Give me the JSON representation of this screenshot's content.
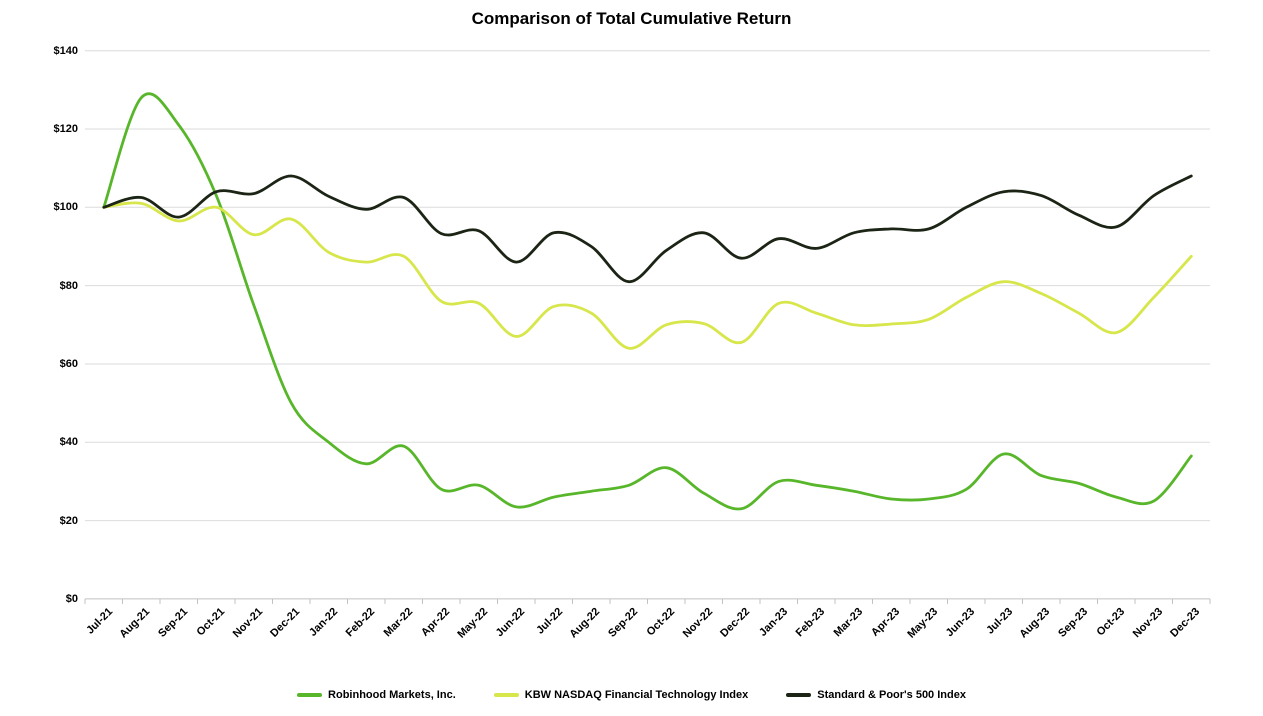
{
  "title": "Comparison of Total Cumulative Return",
  "chart_data": {
    "type": "line",
    "title": "Comparison of Total Cumulative Return",
    "smoothed": true,
    "grid": true,
    "legend_position": "bottom",
    "background_color": "#ffffff",
    "gridline_color": "#dbdbdb",
    "axis_color": "#c0c0c0",
    "categories": [
      "Jul-21",
      "Aug-21",
      "Sep-21",
      "Oct-21",
      "Nov-21",
      "Dec-21",
      "Jan-22",
      "Feb-22",
      "Mar-22",
      "Apr-22",
      "May-22",
      "Jun-22",
      "Jul-22",
      "Aug-22",
      "Sep-22",
      "Oct-22",
      "Nov-22",
      "Dec-22",
      "Jan-23",
      "Feb-23",
      "Mar-23",
      "Apr-23",
      "May-23",
      "Jun-23",
      "Jul-23",
      "Aug-23",
      "Sep-23",
      "Oct-23",
      "Nov-23",
      "Dec-23"
    ],
    "ylim": [
      0,
      140
    ],
    "y_tick_step": 20,
    "y_tick_labels": [
      "$0",
      "$20",
      "$40",
      "$60",
      "$80",
      "$100",
      "$120",
      "$140"
    ],
    "series": [
      {
        "name": "Robinhood Markets, Inc.",
        "color": "#58b62b",
        "values": [
          100,
          128,
          121,
          103,
          75,
          50,
          40,
          34.5,
          39,
          28,
          29,
          23.5,
          26,
          27.5,
          29,
          33.5,
          27,
          23,
          30,
          29,
          27.5,
          25.5,
          25.5,
          28,
          37,
          31.5,
          29.5,
          26,
          25,
          36.5
        ]
      },
      {
        "name": "KBW NASDAQ Financial Technology Index",
        "color": "#d7e64b",
        "values": [
          100,
          101,
          96.5,
          100,
          93,
          97,
          88.5,
          86,
          87.5,
          76,
          75.5,
          67,
          74.7,
          73,
          64,
          70,
          70.3,
          65.5,
          75.5,
          73,
          70,
          70.2,
          71.4,
          77,
          81,
          78,
          73,
          68,
          77,
          87.5
        ]
      },
      {
        "name": "Standard & Poor's 500 Index",
        "color": "#1b2415",
        "values": [
          100,
          102.5,
          97.5,
          104,
          103.5,
          108,
          102.8,
          99.5,
          102.5,
          93.3,
          94,
          86,
          93.5,
          90,
          81,
          89,
          93.5,
          87,
          92,
          89.5,
          93.5,
          94.5,
          94.5,
          100,
          104,
          103,
          98,
          95,
          103,
          108
        ]
      }
    ]
  }
}
